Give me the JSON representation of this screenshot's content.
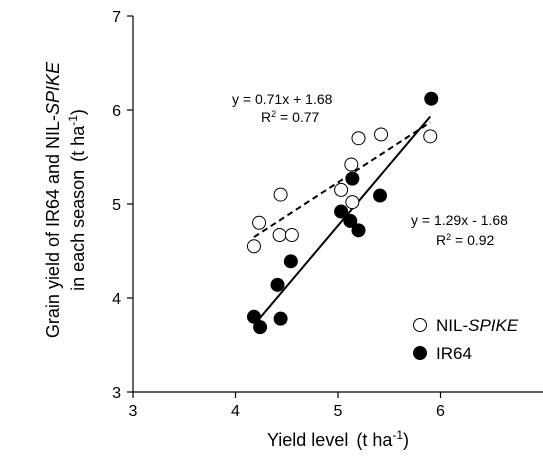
{
  "chart_data": {
    "type": "scatter",
    "title": "",
    "xlabel": {
      "main": "Yield level",
      "unit_prefix": "(t ha",
      "unit_exp": "-1",
      "unit_suffix": ")"
    },
    "ylabel": {
      "line1_a": "Grain yield of IR64 and NIL-",
      "line1_b": "SPIKE",
      "line2_a": "in each season",
      "line2_b": "(t ha",
      "line2_exp": "-1",
      "line2_c": ")"
    },
    "xlim": [
      3,
      7
    ],
    "ylim": [
      3,
      7
    ],
    "xticks": [
      "3",
      "4",
      "5",
      "6"
    ],
    "yticks": [
      "3",
      "4",
      "5",
      "6",
      "7"
    ],
    "grid": false,
    "legend_position": "bottom-right",
    "series": [
      {
        "name": "NIL-SPIKE",
        "name_a": "NIL-",
        "name_b": "SPIKE",
        "marker": "open-circle",
        "points": [
          [
            4.18,
            4.55
          ],
          [
            4.23,
            4.8
          ],
          [
            4.43,
            4.67
          ],
          [
            4.44,
            5.1
          ],
          [
            4.55,
            4.67
          ],
          [
            5.03,
            5.15
          ],
          [
            5.13,
            5.42
          ],
          [
            5.14,
            5.02
          ],
          [
            5.2,
            5.7
          ],
          [
            5.42,
            5.74
          ],
          [
            5.9,
            5.72
          ]
        ],
        "trendline": {
          "style": "dashed",
          "slope": 0.71,
          "intercept": 1.68,
          "x_range": [
            4.18,
            5.9
          ]
        },
        "equation": "y = 0.71x + 1.68",
        "r2_prefix": "R",
        "r2_suffix": " = 0.77"
      },
      {
        "name": "IR64",
        "marker": "filled-circle",
        "points": [
          [
            4.18,
            3.8
          ],
          [
            4.24,
            3.69
          ],
          [
            4.41,
            4.14
          ],
          [
            4.44,
            3.78
          ],
          [
            4.54,
            4.39
          ],
          [
            5.03,
            4.92
          ],
          [
            5.12,
            4.82
          ],
          [
            5.14,
            5.27
          ],
          [
            5.2,
            4.72
          ],
          [
            5.41,
            5.09
          ],
          [
            5.91,
            6.12
          ]
        ],
        "trendline": {
          "style": "solid",
          "slope": 1.29,
          "intercept": -1.68,
          "x_range": [
            4.2,
            5.9
          ]
        },
        "equation": "y = 1.29x - 1.68",
        "r2_prefix": "R",
        "r2_suffix": " = 0.92"
      }
    ]
  },
  "colors": {
    "axis": "#000000",
    "open_fill": "#ffffff",
    "filled": "#000000"
  }
}
